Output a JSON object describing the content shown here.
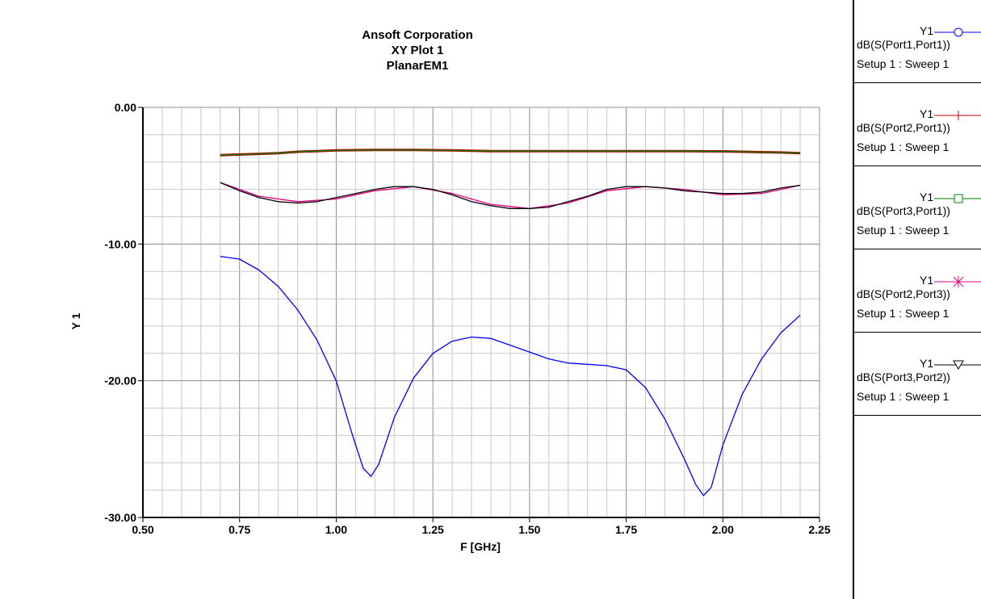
{
  "chart_data": {
    "type": "line",
    "title": "Ansoft Corporation",
    "subtitle": "XY Plot 1",
    "subtitle2": "PlanarEM1",
    "xlabel": "F [GHz]",
    "ylabel": "Y 1",
    "xlim": [
      0.5,
      2.25
    ],
    "ylim": [
      -30,
      0
    ],
    "x_ticks": [
      "0.50",
      "0.75",
      "1.00",
      "1.25",
      "1.50",
      "1.75",
      "2.00",
      "2.25"
    ],
    "y_ticks": [
      "0.00",
      "-10.00",
      "-20.00",
      "-30.00"
    ],
    "grid": true,
    "legend_placement": "right",
    "series": [
      {
        "name": "dB(S(Port1,Port1))",
        "color": "#0000ff",
        "marker": "circle",
        "x": [
          0.7,
          0.75,
          0.8,
          0.85,
          0.9,
          0.95,
          1.0,
          1.04,
          1.07,
          1.09,
          1.11,
          1.15,
          1.2,
          1.25,
          1.3,
          1.35,
          1.4,
          1.45,
          1.5,
          1.55,
          1.6,
          1.65,
          1.7,
          1.75,
          1.8,
          1.85,
          1.9,
          1.93,
          1.95,
          1.97,
          2.0,
          2.05,
          2.1,
          2.15,
          2.2
        ],
        "y": [
          -10.9,
          -11.1,
          -11.9,
          -13.1,
          -14.8,
          -17.0,
          -20.0,
          -23.8,
          -26.4,
          -27.0,
          -26.1,
          -22.7,
          -19.8,
          -18.0,
          -17.1,
          -16.8,
          -16.9,
          -17.4,
          -17.9,
          -18.4,
          -18.7,
          -18.8,
          -18.9,
          -19.2,
          -20.5,
          -22.8,
          -25.7,
          -27.6,
          -28.4,
          -27.8,
          -24.7,
          -21.0,
          -18.4,
          -16.5,
          -15.2
        ]
      },
      {
        "name": "dB(S(Port2,Port1))",
        "color": "#c00000",
        "marker": "plus",
        "x": [
          0.7,
          0.75,
          0.8,
          0.85,
          0.9,
          0.95,
          1.0,
          1.1,
          1.2,
          1.3,
          1.4,
          1.5,
          1.6,
          1.7,
          1.8,
          1.9,
          2.0,
          2.05,
          2.1,
          2.15,
          2.2
        ],
        "y": [
          -3.5,
          -3.45,
          -3.4,
          -3.35,
          -3.25,
          -3.2,
          -3.15,
          -3.12,
          -3.12,
          -3.15,
          -3.2,
          -3.2,
          -3.2,
          -3.2,
          -3.2,
          -3.2,
          -3.22,
          -3.25,
          -3.28,
          -3.3,
          -3.35
        ]
      },
      {
        "name": "dB(S(Port3,Port1))",
        "color": "#008000",
        "marker": "square",
        "x": [
          0.7,
          0.75,
          0.8,
          0.85,
          0.9,
          0.95,
          1.0,
          1.1,
          1.2,
          1.3,
          1.4,
          1.5,
          1.6,
          1.7,
          1.8,
          1.9,
          2.0,
          2.05,
          2.1,
          2.15,
          2.2
        ],
        "y": [
          -3.5,
          -3.45,
          -3.4,
          -3.35,
          -3.25,
          -3.2,
          -3.15,
          -3.12,
          -3.12,
          -3.15,
          -3.2,
          -3.2,
          -3.2,
          -3.2,
          -3.2,
          -3.2,
          -3.22,
          -3.25,
          -3.28,
          -3.3,
          -3.35
        ]
      },
      {
        "name": "dB(S(Port2,Port3))",
        "color": "#e0007f",
        "marker": "asterisk",
        "x": [
          0.7,
          0.8,
          0.9,
          1.0,
          1.1,
          1.2,
          1.3,
          1.4,
          1.5,
          1.6,
          1.7,
          1.8,
          1.9,
          2.0,
          2.1,
          2.2
        ],
        "y": [
          -5.5,
          -6.5,
          -6.9,
          -6.7,
          -6.1,
          -5.8,
          -6.3,
          -7.1,
          -7.4,
          -7.0,
          -6.1,
          -5.8,
          -6.0,
          -6.4,
          -6.3,
          -5.7
        ]
      },
      {
        "name": "dB(S(Port3,Port2))",
        "color": "#000000",
        "marker": "triangle-down",
        "x": [
          0.7,
          0.75,
          0.8,
          0.85,
          0.9,
          0.95,
          1.0,
          1.05,
          1.1,
          1.15,
          1.2,
          1.25,
          1.3,
          1.35,
          1.4,
          1.45,
          1.5,
          1.55,
          1.6,
          1.65,
          1.7,
          1.75,
          1.8,
          1.85,
          1.9,
          1.95,
          2.0,
          2.05,
          2.1,
          2.15,
          2.2
        ],
        "y": [
          -5.5,
          -6.1,
          -6.6,
          -6.9,
          -7.0,
          -6.9,
          -6.6,
          -6.3,
          -6.0,
          -5.8,
          -5.8,
          -6.0,
          -6.4,
          -6.9,
          -7.2,
          -7.4,
          -7.4,
          -7.3,
          -6.9,
          -6.5,
          -6.0,
          -5.8,
          -5.8,
          -5.9,
          -6.1,
          -6.2,
          -6.3,
          -6.3,
          -6.2,
          -5.9,
          -5.7
        ]
      }
    ]
  },
  "legend": {
    "entries": [
      {
        "y_label": "Y1",
        "trace": "dB(S(Port1,Port1))",
        "setup": "Setup 1 : Sweep 1",
        "color": "#0000ff",
        "marker": "circle"
      },
      {
        "y_label": "Y1",
        "trace": "dB(S(Port2,Port1))",
        "setup": "Setup 1 : Sweep 1",
        "color": "#c00000",
        "marker": "plus"
      },
      {
        "y_label": "Y1",
        "trace": "dB(S(Port3,Port1))",
        "setup": "Setup 1 : Sweep 1",
        "color": "#008000",
        "marker": "square"
      },
      {
        "y_label": "Y1",
        "trace": "dB(S(Port2,Port3))",
        "setup": "Setup 1 : Sweep 1",
        "color": "#e0007f",
        "marker": "asterisk"
      },
      {
        "y_label": "Y1",
        "trace": "dB(S(Port3,Port2))",
        "setup": "Setup 1 : Sweep 1",
        "color": "#000000",
        "marker": "triangle-down"
      }
    ]
  }
}
